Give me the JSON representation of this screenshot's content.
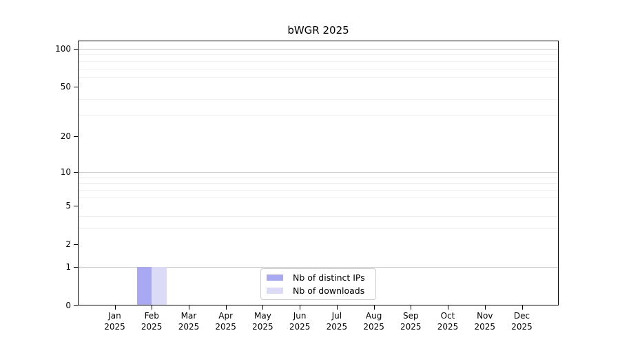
{
  "chart_data": {
    "type": "bar",
    "title": "bWGR 2025",
    "categories": [
      "Jan 2025",
      "Feb 2025",
      "Mar 2025",
      "Apr 2025",
      "May 2025",
      "Jun 2025",
      "Jul 2025",
      "Aug 2025",
      "Sep 2025",
      "Oct 2025",
      "Nov 2025",
      "Dec 2025"
    ],
    "x_tick_labels": [
      [
        "Jan",
        "2025"
      ],
      [
        "Feb",
        "2025"
      ],
      [
        "Mar",
        "2025"
      ],
      [
        "Apr",
        "2025"
      ],
      [
        "May",
        "2025"
      ],
      [
        "Jun",
        "2025"
      ],
      [
        "Jul",
        "2025"
      ],
      [
        "Aug",
        "2025"
      ],
      [
        "Sep",
        "2025"
      ],
      [
        "Oct",
        "2025"
      ],
      [
        "Nov",
        "2025"
      ],
      [
        "Dec",
        "2025"
      ]
    ],
    "series": [
      {
        "name": "Nb of distinct IPs",
        "color": "#a9a9f3",
        "values": [
          0,
          1,
          0,
          0,
          0,
          0,
          0,
          0,
          0,
          0,
          0,
          0
        ]
      },
      {
        "name": "Nb of downloads",
        "color": "#dbdbf8",
        "values": [
          0,
          1,
          0,
          0,
          0,
          0,
          0,
          0,
          0,
          0,
          0,
          0
        ]
      }
    ],
    "yscale": "log1p",
    "ylim": [
      0,
      116
    ],
    "y_ticks": [
      0,
      1,
      2,
      5,
      10,
      20,
      50,
      100
    ],
    "y_minor_ticks": [
      3,
      4,
      6,
      7,
      8,
      9,
      30,
      40,
      60,
      70,
      80,
      90
    ],
    "y_major_gridlines": [
      1,
      10,
      100
    ],
    "grid": true,
    "legend": {
      "position": "lower center",
      "items": [
        "Nb of distinct IPs",
        "Nb of downloads"
      ]
    },
    "colors": {
      "axis": "#000000",
      "major_grid": "#c9c9c9",
      "minor_grid": "#efefef",
      "legend_border": "#cccccc",
      "background": "#ffffff"
    }
  }
}
